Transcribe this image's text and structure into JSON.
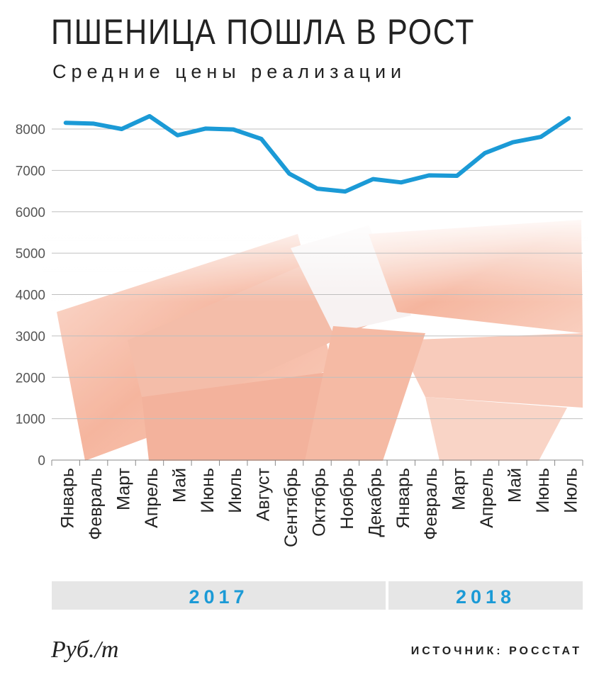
{
  "title": "ПШЕНИЦА ПОШЛА В РОСТ",
  "subtitle": "Средние цены реализации",
  "unit_label": "Руб./т",
  "source_label": "ИСТОЧНИК: РОССТАТ",
  "colors": {
    "line": "#1b9ad6",
    "grid": "#bfbfbf",
    "year_band": "#e6e6e6",
    "year_text": "#1b9ad6",
    "axis_text": "#555555"
  },
  "chart_data": {
    "type": "line",
    "title": "ПШЕНИЦА ПОШЛА В РОСТ",
    "subtitle": "Средние цены реализации",
    "ylabel": "Руб./т",
    "ylim": [
      0,
      8000
    ],
    "yticks": [
      0,
      1000,
      2000,
      3000,
      4000,
      5000,
      6000,
      7000,
      8000
    ],
    "grid": true,
    "categories": [
      "Январь",
      "Февраль",
      "Март",
      "Апрель",
      "Май",
      "Июнь",
      "Июль",
      "Август",
      "Сентябрь",
      "Октябрь",
      "Ноябрь",
      "Декабрь",
      "Январь",
      "Февраль",
      "Март",
      "Апрель",
      "Май",
      "Июнь",
      "Июль"
    ],
    "series": [
      {
        "values": [
          8150,
          8130,
          8000,
          8310,
          7850,
          8010,
          7990,
          7760,
          6920,
          6560,
          6490,
          6790,
          6710,
          6880,
          6870,
          7420,
          7680,
          7810,
          8260
        ]
      }
    ],
    "year_groups": [
      {
        "label": "2017",
        "count": 12
      },
      {
        "label": "2018",
        "count": 7
      }
    ]
  }
}
